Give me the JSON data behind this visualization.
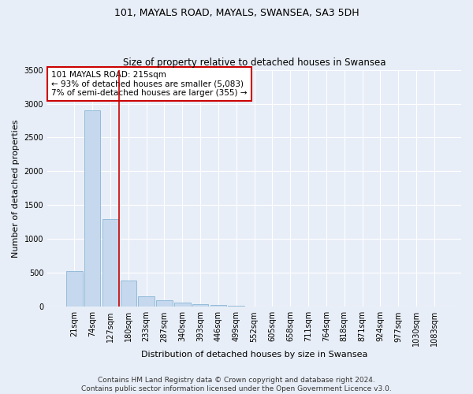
{
  "title": "101, MAYALS ROAD, MAYALS, SWANSEA, SA3 5DH",
  "subtitle": "Size of property relative to detached houses in Swansea",
  "xlabel": "Distribution of detached houses by size in Swansea",
  "ylabel": "Number of detached properties",
  "categories": [
    "21sqm",
    "74sqm",
    "127sqm",
    "180sqm",
    "233sqm",
    "287sqm",
    "340sqm",
    "393sqm",
    "446sqm",
    "499sqm",
    "552sqm",
    "605sqm",
    "658sqm",
    "711sqm",
    "764sqm",
    "818sqm",
    "871sqm",
    "924sqm",
    "977sqm",
    "1030sqm",
    "1083sqm"
  ],
  "values": [
    530,
    2900,
    1300,
    390,
    155,
    95,
    60,
    40,
    25,
    14,
    0,
    0,
    0,
    0,
    0,
    0,
    0,
    0,
    0,
    0,
    0
  ],
  "bar_color": "#c5d8ed",
  "bar_edge_color": "#7aaed0",
  "annotation_text": "101 MAYALS ROAD: 215sqm\n← 93% of detached houses are smaller (5,083)\n7% of semi-detached houses are larger (355) →",
  "annotation_box_color": "#ffffff",
  "annotation_box_edge": "#cc0000",
  "vline_color": "#cc0000",
  "vline_x": 2.5,
  "ylim": [
    0,
    3500
  ],
  "yticks": [
    0,
    500,
    1000,
    1500,
    2000,
    2500,
    3000,
    3500
  ],
  "background_color": "#e8eef7",
  "grid_color": "#ffffff",
  "footer_text": "Contains HM Land Registry data © Crown copyright and database right 2024.\nContains public sector information licensed under the Open Government Licence v3.0.",
  "title_fontsize": 9,
  "subtitle_fontsize": 8.5,
  "xlabel_fontsize": 8,
  "ylabel_fontsize": 8,
  "tick_fontsize": 7,
  "annotation_fontsize": 7.5,
  "footer_fontsize": 6.5
}
